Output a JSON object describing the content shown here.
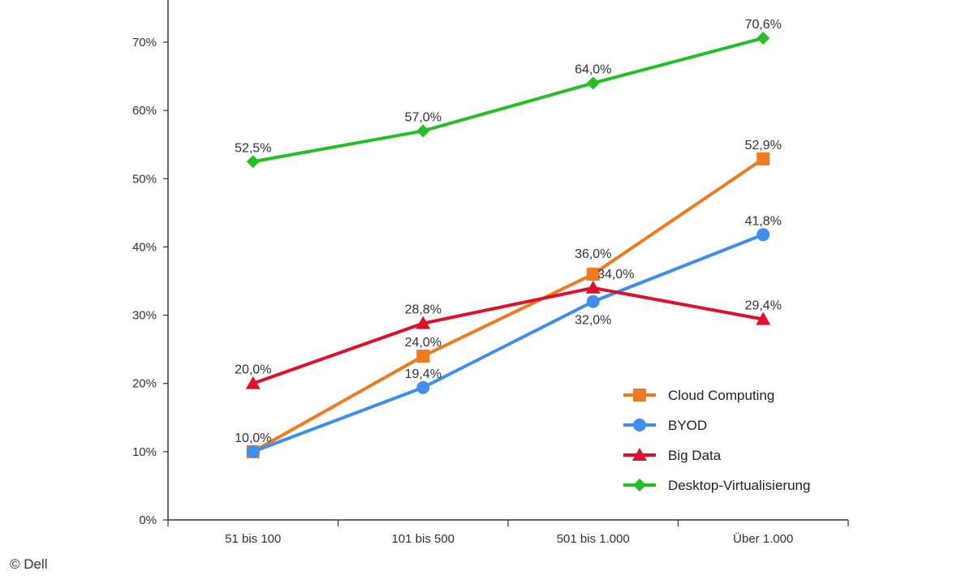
{
  "chart_data": {
    "type": "line",
    "categories": [
      "51 bis 100",
      "101 bis 500",
      "501 bis 1.000",
      "Über 1.000"
    ],
    "ylim": [
      0,
      70
    ],
    "yticks": [
      0,
      10,
      20,
      30,
      40,
      50,
      60,
      70
    ],
    "ytick_labels": [
      "0%",
      "10%",
      "20%",
      "30%",
      "40%",
      "50%",
      "60%",
      "70%"
    ],
    "grid": false,
    "legend_position": "bottom-right",
    "series": [
      {
        "name": "Cloud Computing",
        "color": "#f07a1e",
        "marker": "square",
        "values": [
          10.0,
          24.0,
          36.0,
          52.9
        ],
        "labels": [
          "10,0%",
          "24,0%",
          "36,0%",
          "52,9%"
        ]
      },
      {
        "name": "BYOD",
        "color": "#3d8ef0",
        "marker": "circle",
        "values": [
          10.0,
          19.4,
          32.0,
          41.8
        ],
        "labels": [
          "",
          "19,4%",
          "32,0%",
          "41,8%"
        ]
      },
      {
        "name": "Big Data",
        "color": "#e0102a",
        "marker": "triangle",
        "values": [
          20.0,
          28.8,
          34.0,
          29.4
        ],
        "labels": [
          "20,0%",
          "28,8%",
          "34,0%",
          "29,4%"
        ]
      },
      {
        "name": "Desktop-Virtualisierung",
        "color": "#22c022",
        "marker": "diamond",
        "values": [
          52.5,
          57.0,
          64.0,
          70.6
        ],
        "labels": [
          "52,5%",
          "57,0%",
          "64,0%",
          "70,6%"
        ]
      }
    ]
  },
  "credit": "© Dell"
}
